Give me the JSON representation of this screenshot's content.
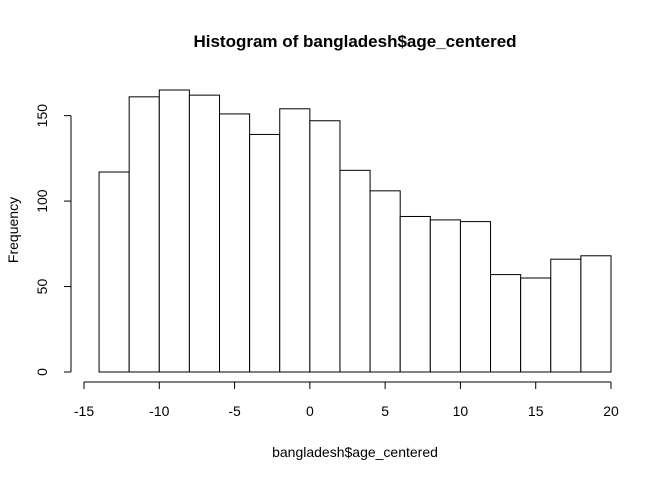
{
  "chart_data": {
    "type": "bar",
    "title": "Histogram of bangladesh$age_centered",
    "xlabel": "bangladesh$age_centered",
    "ylabel": "Frequency",
    "bin_edges": [
      -14,
      -12,
      -10,
      -8,
      -6,
      -4,
      -2,
      0,
      2,
      4,
      6,
      8,
      10,
      12,
      14,
      16,
      18,
      20
    ],
    "values": [
      117,
      161,
      165,
      162,
      151,
      139,
      154,
      147,
      118,
      106,
      91,
      89,
      88,
      57,
      55,
      66,
      68
    ],
    "xlim": [
      -15,
      20
    ],
    "ylim": [
      0,
      165
    ],
    "x_ticks": [
      -15,
      -10,
      -5,
      0,
      5,
      10,
      15,
      20
    ],
    "y_ticks": [
      0,
      50,
      100,
      150
    ],
    "grid": false,
    "bar_fill": "#ffffff",
    "bar_stroke": "#000000"
  }
}
